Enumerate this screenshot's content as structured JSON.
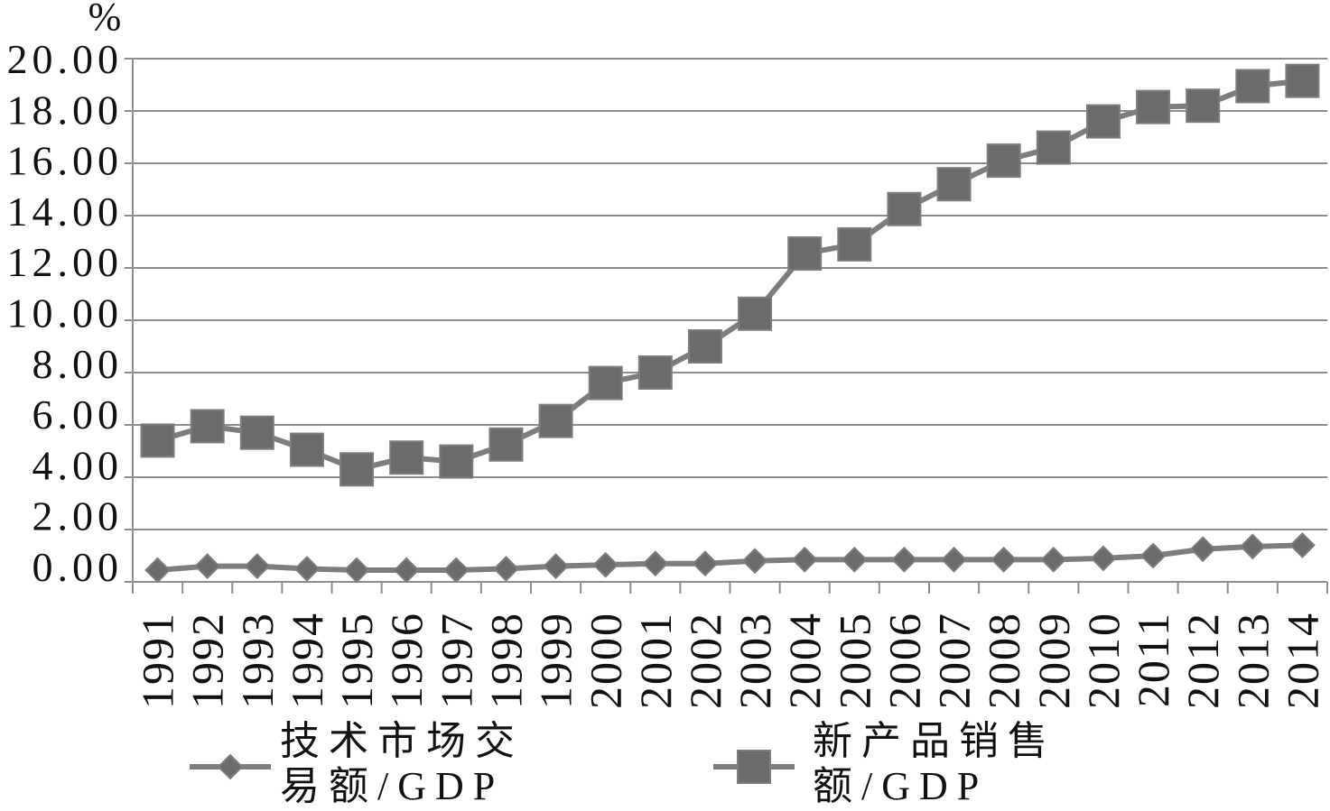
{
  "chart_data": {
    "type": "line",
    "ylabel": "%",
    "ylim": [
      0,
      20
    ],
    "y_ticks": [
      "0.00",
      "2.00",
      "4.00",
      "6.00",
      "8.00",
      "10.00",
      "12.00",
      "14.00",
      "16.00",
      "18.00",
      "20.00"
    ],
    "grid": true,
    "legend_position": "bottom",
    "categories": [
      "1991",
      "1992",
      "1993",
      "1994",
      "1995",
      "1996",
      "1997",
      "1998",
      "1999",
      "2000",
      "2001",
      "2002",
      "2003",
      "2004",
      "2005",
      "2006",
      "2007",
      "2008",
      "2009",
      "2010",
      "2011",
      "2012",
      "2013",
      "2014"
    ],
    "series": [
      {
        "name": "技术市场交易额/GDP",
        "marker": "diamond",
        "color": "#7d7d7d",
        "marker_color": "#6b6b6b",
        "values": [
          0.45,
          0.6,
          0.6,
          0.5,
          0.45,
          0.45,
          0.45,
          0.5,
          0.6,
          0.65,
          0.7,
          0.7,
          0.8,
          0.85,
          0.85,
          0.85,
          0.85,
          0.85,
          0.85,
          0.9,
          1.0,
          1.25,
          1.35,
          1.4
        ]
      },
      {
        "name": "新产品销售额/GDP",
        "marker": "square",
        "color": "#7d7d7d",
        "marker_color": "#6b6b6b",
        "values": [
          5.4,
          5.95,
          5.7,
          5.05,
          4.3,
          4.75,
          4.6,
          5.25,
          6.15,
          7.6,
          8.0,
          9.0,
          10.25,
          12.55,
          12.9,
          14.25,
          15.2,
          16.1,
          16.6,
          17.6,
          18.15,
          18.2,
          18.95,
          19.15
        ]
      }
    ]
  }
}
